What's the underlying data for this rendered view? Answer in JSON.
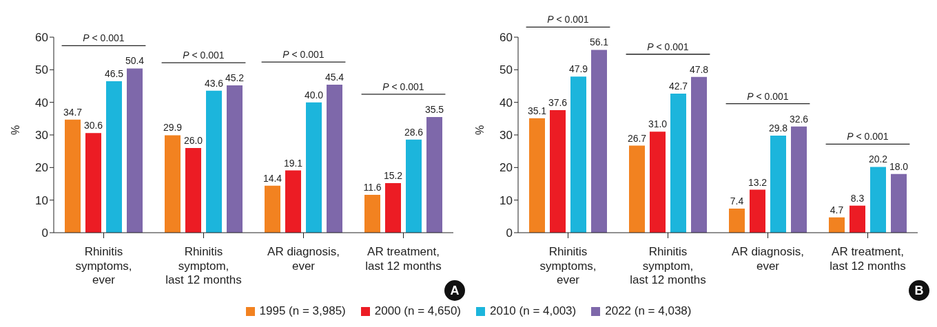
{
  "chart_data": [
    {
      "type": "bar",
      "categories": [
        "Rhinitis symptoms, ever",
        "Rhinitis symptom, last 12 months",
        "AR diagnosis, ever",
        "AR treatment, last 12 months"
      ],
      "ylabel": "%",
      "ylim": [
        0,
        60
      ],
      "yticks": [
        0,
        10,
        20,
        30,
        40,
        50,
        60
      ],
      "legend": "bottom",
      "series": [
        {
          "name": "1995 (n = 3,985)",
          "color": "#f28220",
          "values": [
            34.7,
            29.9,
            14.4,
            11.6
          ],
          "value_labels": [
            "34.7",
            "29.9",
            "14.4",
            "11.6"
          ]
        },
        {
          "name": "2000 (n = 4,650)",
          "color": "#ec1c24",
          "values": [
            30.6,
            26.0,
            19.1,
            15.2
          ],
          "value_labels": [
            "30.6",
            "26.0",
            "19.1",
            "15.2"
          ]
        },
        {
          "name": "2010 (n = 4,003)",
          "color": "#1cb5dc",
          "values": [
            46.5,
            43.6,
            40.0,
            28.6
          ],
          "value_labels": [
            "46.5",
            "43.6",
            "40.0",
            "28.6"
          ]
        },
        {
          "name": "2022 (n = 4,038)",
          "color": "#7e68aa",
          "values": [
            50.4,
            45.2,
            45.4,
            35.5
          ],
          "value_labels": [
            "50.4",
            "45.2",
            "45.4",
            "35.5"
          ]
        }
      ],
      "annotations": [
        "P < 0.001",
        "P < 0.001",
        "P < 0.001",
        "P < 0.001",
        "A"
      ]
    },
    {
      "type": "bar",
      "categories": [
        "Rhinitis symptoms, ever",
        "Rhinitis symptom, last 12 months",
        "AR diagnosis, ever",
        "AR treatment, last 12 months"
      ],
      "ylabel": "%",
      "ylim": [
        0,
        60
      ],
      "yticks": [
        0,
        10,
        20,
        30,
        40,
        50,
        60
      ],
      "series": [
        {
          "color": "#f28220",
          "values": [
            35.1,
            26.7,
            7.4,
            4.7
          ],
          "value_labels": [
            "35.1",
            "26.7",
            "7.4",
            "4.7"
          ]
        },
        {
          "color": "#ec1c24",
          "values": [
            37.6,
            31.0,
            13.2,
            8.3
          ],
          "value_labels": [
            "37.6",
            "31.0",
            "13.2",
            "8.3"
          ]
        },
        {
          "color": "#1cb5dc",
          "values": [
            47.9,
            42.7,
            29.8,
            20.2
          ],
          "value_labels": [
            "47.9",
            "42.7",
            "29.8",
            "20.2"
          ]
        },
        {
          "color": "#7e68aa",
          "values": [
            56.1,
            47.8,
            32.6,
            18.0
          ],
          "value_labels": [
            "56.1",
            "47.8",
            "32.6",
            "18.0"
          ]
        }
      ],
      "annotations": [
        "P < 0.001",
        "P < 0.001",
        "P < 0.001",
        "P < 0.001",
        "B"
      ]
    }
  ]
}
